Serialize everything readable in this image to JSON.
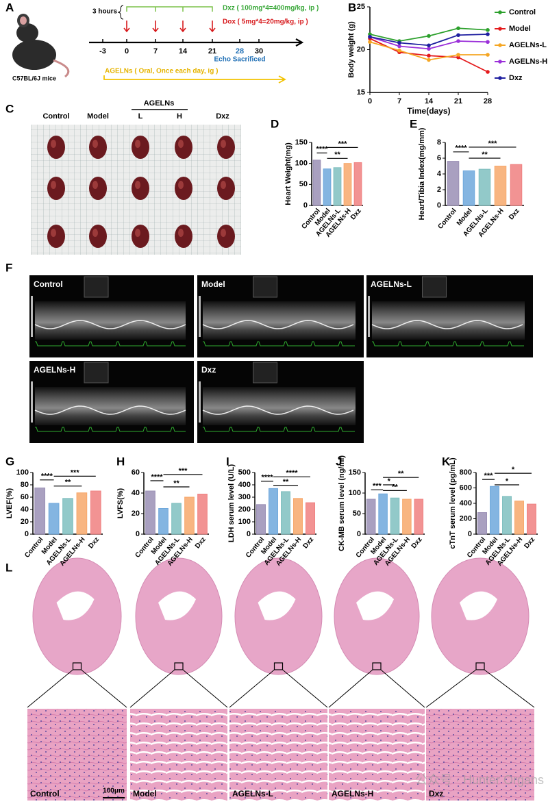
{
  "panel_labels": [
    "A",
    "B",
    "C",
    "D",
    "E",
    "F",
    "G",
    "H",
    "I",
    "J",
    "K",
    "L"
  ],
  "timeline": {
    "duration": "3 hours",
    "dxz": "Dxz ( 100mg*4=400mg/kg, ip )",
    "dox": "Dox ( 5mg*4=20mg/kg, ip )",
    "days": [
      "-3",
      "0",
      "7",
      "14",
      "21",
      "28",
      "30"
    ],
    "echo": "Echo Sacrificed",
    "agelns": "AGELNs ( Oral, Once each day, ig )",
    "mouse": "C57BL/6J mice"
  },
  "photo": {
    "control": "Control",
    "model": "Model",
    "agelns": "AGELNs",
    "low": "L",
    "high": "H",
    "dxz": "Dxz"
  },
  "echo": {
    "panels": [
      "Control",
      "Model",
      "AGELNs-L",
      "AGELNs-H",
      "Dxz"
    ]
  },
  "histology": {
    "panels": [
      "Control",
      "Model",
      "AGELNs-L",
      "AGELNs-H",
      "Dxz"
    ],
    "scale_bar": "100μm"
  },
  "watermark": "公众号 · Hunter Organs",
  "chart_data": [
    {
      "type": "line",
      "ylabel": "Body weight (g)",
      "xlabel": "Time(days)",
      "x": [
        0,
        7,
        14,
        21,
        28
      ],
      "xlim": [
        0,
        28
      ],
      "xticks": [
        0,
        7,
        14,
        21,
        28
      ],
      "ylim": [
        15,
        25
      ],
      "yticks": [
        15,
        20,
        25
      ],
      "series": [
        {
          "name": "Control",
          "color": "#2ca02c",
          "values": [
            21.8,
            21.0,
            21.6,
            22.5,
            22.3
          ]
        },
        {
          "name": "Model",
          "color": "#e41a1c",
          "values": [
            21.3,
            19.7,
            19.3,
            19.1,
            17.4
          ]
        },
        {
          "name": "AGELNs-L",
          "color": "#f5a623",
          "values": [
            20.9,
            19.9,
            18.8,
            19.4,
            19.4
          ]
        },
        {
          "name": "AGELNs-H",
          "color": "#9b30d9",
          "values": [
            21.5,
            20.4,
            20.1,
            21.0,
            20.9
          ]
        },
        {
          "name": "Dxz",
          "color": "#1f1fa0",
          "values": [
            21.5,
            20.8,
            20.5,
            21.7,
            21.8
          ]
        }
      ]
    },
    {
      "type": "bar",
      "ylabel": "Heart Weight(mg)",
      "categories": [
        "Control",
        "Model",
        "AGELNs-L",
        "AGELNs-H",
        "Dxz"
      ],
      "colors": [
        "#9a8fb5",
        "#6fa8dc",
        "#7fbfbf",
        "#f7a86b",
        "#f08080"
      ],
      "values": [
        108,
        87,
        90,
        100,
        102
      ],
      "ylim": [
        0,
        150
      ],
      "yticks": [
        0,
        50,
        100,
        150
      ],
      "annotations": [
        {
          "text": "****",
          "between": [
            "Control",
            "Model"
          ],
          "y": 125
        },
        {
          "text": "**",
          "between": [
            "Model",
            "AGELNs-H"
          ],
          "y": 112
        },
        {
          "text": "***",
          "between": [
            "Model",
            "Dxz"
          ],
          "y": 138
        }
      ]
    },
    {
      "type": "bar",
      "ylabel": "Heart/Tibia Index(mg/mm)",
      "categories": [
        "Control",
        "Model",
        "AGELNs-L",
        "AGELNs-H",
        "Dxz"
      ],
      "colors": [
        "#9a8fb5",
        "#6fa8dc",
        "#7fbfbf",
        "#f7a86b",
        "#f08080"
      ],
      "values": [
        5.6,
        4.4,
        4.6,
        5.0,
        5.2
      ],
      "ylim": [
        0,
        8
      ],
      "yticks": [
        0,
        2,
        4,
        6,
        8
      ],
      "annotations": [
        {
          "text": "****",
          "between": [
            "Control",
            "Model"
          ],
          "y": 6.8
        },
        {
          "text": "**",
          "between": [
            "Model",
            "AGELNs-H"
          ],
          "y": 6.0
        },
        {
          "text": "***",
          "between": [
            "Model",
            "Dxz"
          ],
          "y": 7.4
        }
      ]
    },
    {
      "type": "bar",
      "ylabel": "LVEF(%)",
      "categories": [
        "Control",
        "Model",
        "AGELNs-L",
        "AGELNs-H",
        "Dxz"
      ],
      "colors": [
        "#9a8fb5",
        "#6fa8dc",
        "#7fbfbf",
        "#f7a86b",
        "#f08080"
      ],
      "values": [
        75,
        50,
        58,
        67,
        70
      ],
      "ylim": [
        0,
        100
      ],
      "yticks": [
        0,
        20,
        40,
        60,
        80,
        100
      ],
      "annotations": [
        {
          "text": "****",
          "between": [
            "Control",
            "Model"
          ],
          "y": 88
        },
        {
          "text": "**",
          "between": [
            "Model",
            "AGELNs-H"
          ],
          "y": 78
        },
        {
          "text": "***",
          "between": [
            "Model",
            "Dxz"
          ],
          "y": 94
        }
      ]
    },
    {
      "type": "bar",
      "ylabel": "LVFS(%)",
      "categories": [
        "Control",
        "Model",
        "AGELNs-L",
        "AGELNs-H",
        "Dxz"
      ],
      "colors": [
        "#9a8fb5",
        "#6fa8dc",
        "#7fbfbf",
        "#f7a86b",
        "#f08080"
      ],
      "values": [
        42,
        25,
        30,
        36,
        39
      ],
      "ylim": [
        0,
        60
      ],
      "yticks": [
        0,
        20,
        40,
        60
      ],
      "annotations": [
        {
          "text": "****",
          "between": [
            "Control",
            "Model"
          ],
          "y": 52
        },
        {
          "text": "**",
          "between": [
            "Model",
            "AGELNs-H"
          ],
          "y": 46
        },
        {
          "text": "***",
          "between": [
            "Model",
            "Dxz"
          ],
          "y": 58
        }
      ]
    },
    {
      "type": "bar",
      "ylabel": "LDH serum level (U/L)",
      "categories": [
        "Control",
        "Model",
        "AGELNs-L",
        "AGELNs-H",
        "Dxz"
      ],
      "colors": [
        "#9a8fb5",
        "#6fa8dc",
        "#7fbfbf",
        "#f7a86b",
        "#f08080"
      ],
      "values": [
        240,
        370,
        345,
        290,
        255
      ],
      "ylim": [
        0,
        500
      ],
      "yticks": [
        0,
        100,
        200,
        300,
        400,
        500
      ],
      "annotations": [
        {
          "text": "****",
          "between": [
            "Control",
            "Model"
          ],
          "y": 430
        },
        {
          "text": "**",
          "between": [
            "Model",
            "AGELNs-H"
          ],
          "y": 395
        },
        {
          "text": "****",
          "between": [
            "Model",
            "Dxz"
          ],
          "y": 465
        }
      ]
    },
    {
      "type": "bar",
      "ylabel": "CK-MB serum level (ng/ml)",
      "categories": [
        "Control",
        "Model",
        "AGELNs-L",
        "AGELNs-H",
        "Dxz"
      ],
      "colors": [
        "#9a8fb5",
        "#6fa8dc",
        "#7fbfbf",
        "#f7a86b",
        "#f08080"
      ],
      "values": [
        85,
        98,
        88,
        85,
        85
      ],
      "ylim": [
        0,
        150
      ],
      "yticks": [
        0,
        50,
        100,
        150
      ],
      "annotations": [
        {
          "text": "***",
          "between": [
            "Control",
            "Model"
          ],
          "y": 108
        },
        {
          "text": "*",
          "between": [
            "Model",
            "AGELNs-L"
          ],
          "y": 120
        },
        {
          "text": "**",
          "between": [
            "Model",
            "AGELNs-H"
          ],
          "y": 106
        },
        {
          "text": "**",
          "between": [
            "Model",
            "Dxz"
          ],
          "y": 138
        }
      ]
    },
    {
      "type": "bar",
      "ylabel": "cTnT serum level (pg/mL)",
      "categories": [
        "Control",
        "Model",
        "AGELNs-L",
        "AGELNs-H",
        "Dxz"
      ],
      "colors": [
        "#9a8fb5",
        "#6fa8dc",
        "#7fbfbf",
        "#f7a86b",
        "#f08080"
      ],
      "values": [
        280,
        620,
        490,
        430,
        390
      ],
      "ylim": [
        0,
        800
      ],
      "yticks": [
        0,
        200,
        400,
        600,
        800
      ],
      "annotations": [
        {
          "text": "***",
          "between": [
            "Control",
            "Model"
          ],
          "y": 710
        },
        {
          "text": "*",
          "between": [
            "Model",
            "AGELNs-H"
          ],
          "y": 640
        },
        {
          "text": "*",
          "between": [
            "Model",
            "Dxz"
          ],
          "y": 790
        }
      ]
    }
  ]
}
